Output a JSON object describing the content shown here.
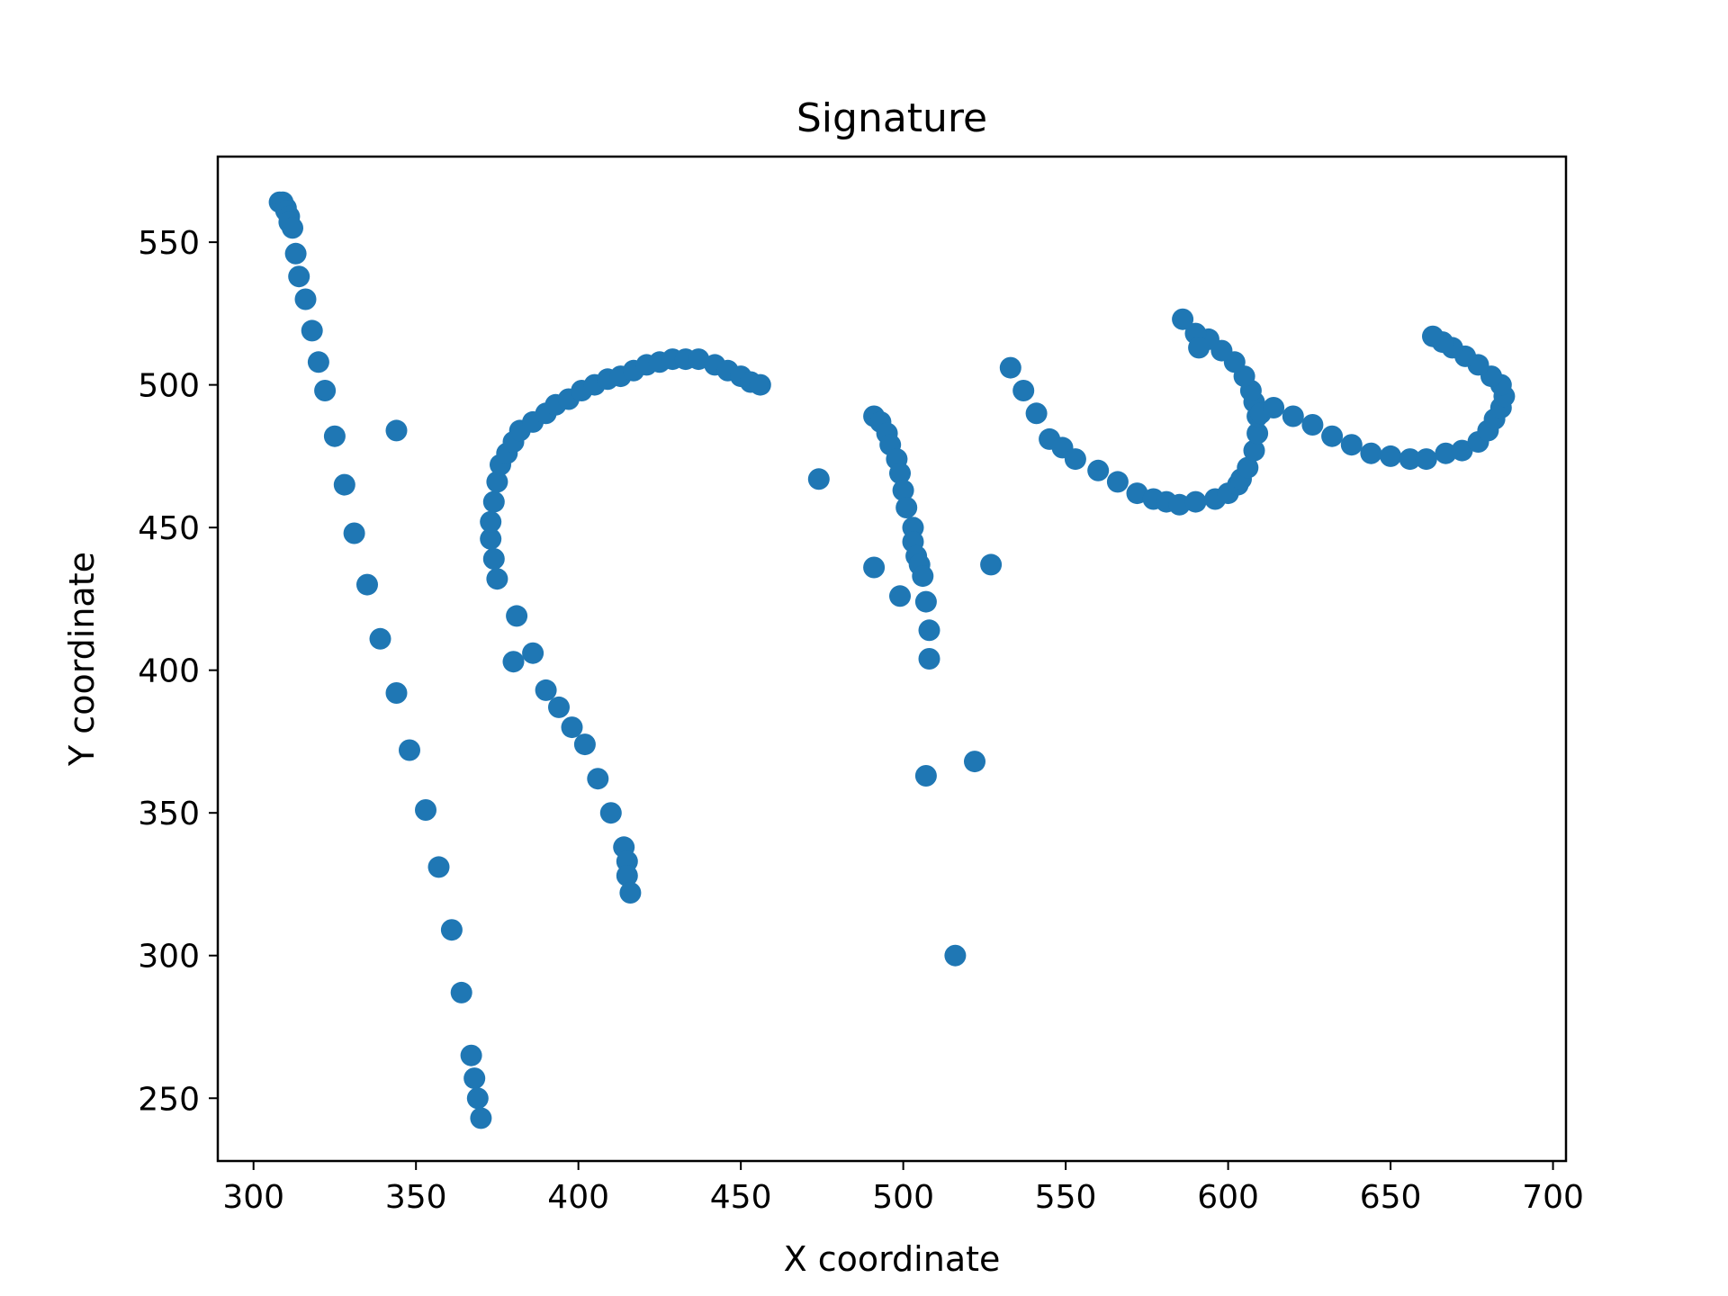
{
  "chart_data": {
    "type": "scatter",
    "title": "Signature",
    "xlabel": "X coordinate",
    "ylabel": "Y coordinate",
    "xlim": [
      289,
      704
    ],
    "ylim": [
      228,
      580
    ],
    "xticks": [
      300,
      350,
      400,
      450,
      500,
      550,
      600,
      650,
      700
    ],
    "yticks": [
      250,
      300,
      350,
      400,
      450,
      500,
      550
    ],
    "grid": false,
    "marker_color": "#1f77b4",
    "series": [
      {
        "points": [
          [
            308,
            564
          ],
          [
            309,
            564
          ],
          [
            310,
            562
          ],
          [
            310,
            561
          ],
          [
            311,
            559
          ],
          [
            311,
            557
          ],
          [
            312,
            555
          ],
          [
            313,
            546
          ],
          [
            314,
            538
          ],
          [
            316,
            530
          ],
          [
            318,
            519
          ],
          [
            320,
            508
          ],
          [
            322,
            498
          ],
          [
            325,
            482
          ],
          [
            328,
            465
          ],
          [
            331,
            448
          ],
          [
            335,
            430
          ],
          [
            339,
            411
          ],
          [
            344,
            392
          ],
          [
            348,
            372
          ],
          [
            353,
            351
          ],
          [
            357,
            331
          ],
          [
            361,
            309
          ],
          [
            364,
            287
          ],
          [
            367,
            265
          ],
          [
            368,
            257
          ],
          [
            369,
            250
          ],
          [
            370,
            243
          ],
          [
            344,
            484
          ],
          [
            375,
            432
          ],
          [
            374,
            439
          ],
          [
            373,
            446
          ],
          [
            373,
            452
          ],
          [
            374,
            459
          ],
          [
            375,
            466
          ],
          [
            376,
            472
          ],
          [
            378,
            476
          ],
          [
            380,
            480
          ],
          [
            382,
            484
          ],
          [
            386,
            487
          ],
          [
            390,
            490
          ],
          [
            393,
            493
          ],
          [
            397,
            495
          ],
          [
            401,
            498
          ],
          [
            405,
            500
          ],
          [
            409,
            502
          ],
          [
            413,
            503
          ],
          [
            417,
            505
          ],
          [
            421,
            507
          ],
          [
            425,
            508
          ],
          [
            429,
            509
          ],
          [
            433,
            509
          ],
          [
            437,
            509
          ],
          [
            442,
            507
          ],
          [
            446,
            505
          ],
          [
            450,
            503
          ],
          [
            453,
            501
          ],
          [
            456,
            500
          ],
          [
            381,
            419
          ],
          [
            380,
            403
          ],
          [
            386,
            406
          ],
          [
            390,
            393
          ],
          [
            394,
            387
          ],
          [
            398,
            380
          ],
          [
            402,
            374
          ],
          [
            406,
            362
          ],
          [
            410,
            350
          ],
          [
            414,
            338
          ],
          [
            415,
            333
          ],
          [
            415,
            328
          ],
          [
            416,
            322
          ],
          [
            474,
            467
          ],
          [
            491,
            489
          ],
          [
            493,
            487
          ],
          [
            495,
            483
          ],
          [
            496,
            479
          ],
          [
            498,
            474
          ],
          [
            499,
            469
          ],
          [
            500,
            463
          ],
          [
            501,
            457
          ],
          [
            503,
            450
          ],
          [
            503,
            445
          ],
          [
            504,
            440
          ],
          [
            505,
            437
          ],
          [
            506,
            433
          ],
          [
            507,
            424
          ],
          [
            508,
            414
          ],
          [
            508,
            404
          ],
          [
            491,
            436
          ],
          [
            499,
            426
          ],
          [
            507,
            363
          ],
          [
            522,
            368
          ],
          [
            516,
            300
          ],
          [
            527,
            437
          ],
          [
            533,
            506
          ],
          [
            537,
            498
          ],
          [
            541,
            490
          ],
          [
            545,
            481
          ],
          [
            549,
            478
          ],
          [
            553,
            474
          ],
          [
            560,
            470
          ],
          [
            566,
            466
          ],
          [
            572,
            462
          ],
          [
            577,
            460
          ],
          [
            581,
            459
          ],
          [
            585,
            458
          ],
          [
            590,
            459
          ],
          [
            596,
            460
          ],
          [
            600,
            462
          ],
          [
            603,
            465
          ],
          [
            604,
            467
          ],
          [
            606,
            471
          ],
          [
            608,
            477
          ],
          [
            609,
            483
          ],
          [
            609,
            489
          ],
          [
            608,
            494
          ],
          [
            607,
            498
          ],
          [
            605,
            503
          ],
          [
            602,
            508
          ],
          [
            598,
            512
          ],
          [
            594,
            516
          ],
          [
            590,
            518
          ],
          [
            586,
            523
          ],
          [
            591,
            513
          ],
          [
            610,
            490
          ],
          [
            614,
            492
          ],
          [
            620,
            489
          ],
          [
            626,
            486
          ],
          [
            632,
            482
          ],
          [
            638,
            479
          ],
          [
            644,
            476
          ],
          [
            650,
            475
          ],
          [
            656,
            474
          ],
          [
            661,
            474
          ],
          [
            667,
            476
          ],
          [
            672,
            477
          ],
          [
            677,
            480
          ],
          [
            680,
            484
          ],
          [
            682,
            488
          ],
          [
            684,
            492
          ],
          [
            685,
            496
          ],
          [
            684,
            500
          ],
          [
            681,
            503
          ],
          [
            677,
            507
          ],
          [
            673,
            510
          ],
          [
            669,
            513
          ],
          [
            666,
            515
          ],
          [
            663,
            517
          ]
        ]
      }
    ]
  }
}
